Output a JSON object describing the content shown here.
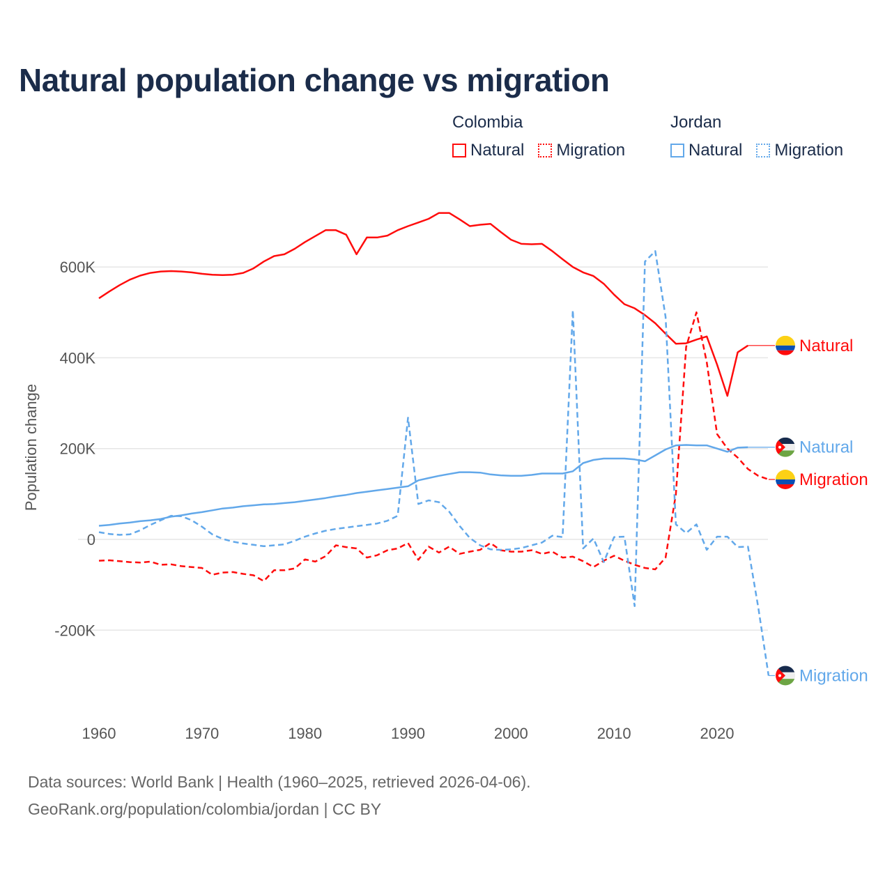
{
  "title": "Natural population change vs migration",
  "legend": {
    "groups": [
      {
        "name": "Colombia",
        "items": [
          {
            "label": "Natural",
            "style": "solid"
          },
          {
            "label": "Migration",
            "style": "dotted"
          }
        ],
        "color": "#ff0c0c"
      },
      {
        "name": "Jordan",
        "items": [
          {
            "label": "Natural",
            "style": "solid"
          },
          {
            "label": "Migration",
            "style": "dotted"
          }
        ],
        "color": "#62a8ea"
      }
    ]
  },
  "footer": {
    "source": "Data sources: World Bank | Health (1960–2025, retrieved 2026-04-06).",
    "credit": "GeoRank.org/population/colombia/jordan | CC BY"
  },
  "chart_data": {
    "type": "line",
    "title": "Natural population change vs migration",
    "xlabel": "",
    "ylabel": "Population change",
    "xlim": [
      1960,
      2025
    ],
    "ylim": [
      -300000,
      720000
    ],
    "x_ticks": [
      1960,
      1970,
      1980,
      1990,
      2000,
      2010,
      2020
    ],
    "x_tick_labels": [
      "1960",
      "1970",
      "1980",
      "1990",
      "2000",
      "2010",
      "2020"
    ],
    "y_ticks": [
      600000,
      400000,
      200000,
      0,
      -200000
    ],
    "y_tick_labels": [
      "600K",
      "400K",
      "200K",
      "0",
      "-200K"
    ],
    "grid": true,
    "legend_position": "top-right",
    "series": [
      {
        "name": "Colombia Natural",
        "country": "Colombia",
        "end_label": "Natural",
        "color": "#ff0c0c",
        "dash": "solid",
        "start_year": 1960,
        "values": [
          531000,
          546000,
          560000,
          572000,
          581000,
          587000,
          590000,
          591000,
          590000,
          588000,
          585000,
          583000,
          582000,
          583000,
          587000,
          597000,
          612000,
          624000,
          628000,
          640000,
          655000,
          668000,
          681000,
          681000,
          671000,
          628000,
          665000,
          665000,
          669000,
          681000,
          690000,
          698000,
          706000,
          719000,
          719000,
          705000,
          690000,
          693000,
          695000,
          677000,
          660000,
          651000,
          650000,
          651000,
          635000,
          617000,
          600000,
          588000,
          580000,
          563000,
          539000,
          518000,
          509000,
          494000,
          476000,
          453000,
          431000,
          432000,
          440000,
          447000,
          385000,
          316000,
          412000,
          427000
        ]
      },
      {
        "name": "Colombia Migration",
        "country": "Colombia",
        "end_label": "Migration",
        "color": "#ff0c0c",
        "dash": "dashed",
        "start_year": 1960,
        "values": [
          -47000,
          -46000,
          -48000,
          -50000,
          -51000,
          -49000,
          -56000,
          -55000,
          -59000,
          -61000,
          -63000,
          -78000,
          -73000,
          -72000,
          -76000,
          -79000,
          -92000,
          -68000,
          -68000,
          -64000,
          -44000,
          -49000,
          -37000,
          -13000,
          -17000,
          -20000,
          -40000,
          -35000,
          -24000,
          -20000,
          -8000,
          -45000,
          -16000,
          -29000,
          -16000,
          -32000,
          -27000,
          -23000,
          -8000,
          -24000,
          -27000,
          -27000,
          -24000,
          -32000,
          -27000,
          -40000,
          -38000,
          -48000,
          -61000,
          -47000,
          -36000,
          -47000,
          -56000,
          -63000,
          -66000,
          -40000,
          100000,
          424000,
          500000,
          390000,
          232000,
          200000,
          180000,
          155000,
          140000,
          132000
        ]
      },
      {
        "name": "Jordan Natural",
        "country": "Jordan",
        "end_label": "Natural",
        "color": "#62a8ea",
        "dash": "solid",
        "start_year": 1960,
        "values": [
          30000,
          32000,
          35000,
          37000,
          40000,
          42000,
          45000,
          50000,
          53000,
          57000,
          60000,
          64000,
          68000,
          70000,
          73000,
          75000,
          77000,
          78000,
          80000,
          82000,
          85000,
          88000,
          91000,
          95000,
          98000,
          102000,
          105000,
          108000,
          111000,
          114000,
          117000,
          130000,
          135000,
          140000,
          144000,
          148000,
          148000,
          147000,
          143000,
          141000,
          140000,
          140000,
          142000,
          145000,
          145000,
          145000,
          150000,
          168000,
          175000,
          178000,
          178000,
          178000,
          176000,
          172000,
          185000,
          198000,
          207000,
          208000,
          207000,
          207000,
          200000,
          193000,
          202000,
          203000
        ]
      },
      {
        "name": "Jordan Migration",
        "country": "Jordan",
        "end_label": "Migration",
        "color": "#62a8ea",
        "dash": "dashed",
        "start_year": 1960,
        "values": [
          16000,
          12000,
          10000,
          11000,
          20000,
          32000,
          42000,
          52000,
          51000,
          42000,
          28000,
          11000,
          1000,
          -5000,
          -9000,
          -12000,
          -15000,
          -13000,
          -11000,
          -3000,
          6000,
          13000,
          19000,
          23000,
          26000,
          29000,
          32000,
          35000,
          41000,
          52000,
          268000,
          78000,
          86000,
          82000,
          61000,
          30000,
          3000,
          -13000,
          -22000,
          -23000,
          -22000,
          -19000,
          -13000,
          -7000,
          8000,
          5000,
          505000,
          -20000,
          2000,
          -50000,
          5000,
          6000,
          -147000,
          612000,
          635000,
          490000,
          33000,
          14000,
          33000,
          -23000,
          6000,
          6000,
          -17000,
          -16000,
          -150000,
          -300000
        ]
      }
    ]
  }
}
